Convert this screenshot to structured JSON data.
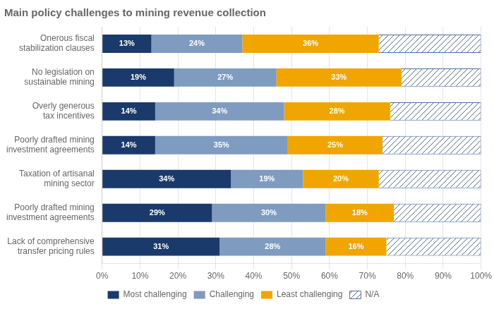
{
  "chart_data": {
    "type": "bar",
    "orientation": "horizontal",
    "stacked": true,
    "title": "Main policy challenges to mining revenue collection",
    "categories": [
      "Onerous fiscal\nstabilization clauses",
      "No legislation on\nsustainable mining",
      "Overly generous\ntax incentives",
      "Poorly drafted mining\ninvestment agreements",
      "Taxation of artisanal\nmining sector",
      "Poorly drafted mining\ninvestment agreements",
      "Lack of comprehensive\ntransfer pricing rules"
    ],
    "series": [
      {
        "name": "Most challenging",
        "color": "#1a3a6b",
        "values": [
          13,
          19,
          14,
          14,
          34,
          29,
          31
        ],
        "data_labels": true,
        "value_labels": [
          "13%",
          "19%",
          "14%",
          "14%",
          "34%",
          "29%",
          "31%"
        ]
      },
      {
        "name": "Challenging",
        "color": "#7f9bbf",
        "values": [
          24,
          27,
          34,
          35,
          19,
          30,
          28
        ],
        "data_labels": true,
        "value_labels": [
          "24%",
          "27%",
          "34%",
          "35%",
          "19%",
          "30%",
          "28%"
        ]
      },
      {
        "name": "Least challenging",
        "color": "#f0a500",
        "values": [
          36,
          33,
          28,
          25,
          20,
          18,
          16
        ],
        "data_labels": true,
        "value_labels": [
          "36%",
          "33%",
          "28%",
          "25%",
          "20%",
          "18%",
          "16%"
        ]
      },
      {
        "name": "N/A",
        "color": "#4a6fa5",
        "values": [
          27,
          21,
          24,
          26,
          27,
          23,
          25
        ]
      }
    ],
    "xlim": [
      0,
      100
    ],
    "xticks": [
      {
        "value": 0,
        "label": "0%"
      },
      {
        "value": 10,
        "label": "10%"
      },
      {
        "value": 20,
        "label": "20%"
      },
      {
        "value": 30,
        "label": "30%"
      },
      {
        "value": 40,
        "label": "40%"
      },
      {
        "value": 50,
        "label": "50%"
      },
      {
        "value": 60,
        "label": "60%"
      },
      {
        "value": 70,
        "label": "70%"
      },
      {
        "value": 80,
        "label": "80%"
      },
      {
        "value": 90,
        "label": "90%"
      },
      {
        "value": 100,
        "label": "100%"
      }
    ],
    "grid": true,
    "legend": "bottom"
  }
}
